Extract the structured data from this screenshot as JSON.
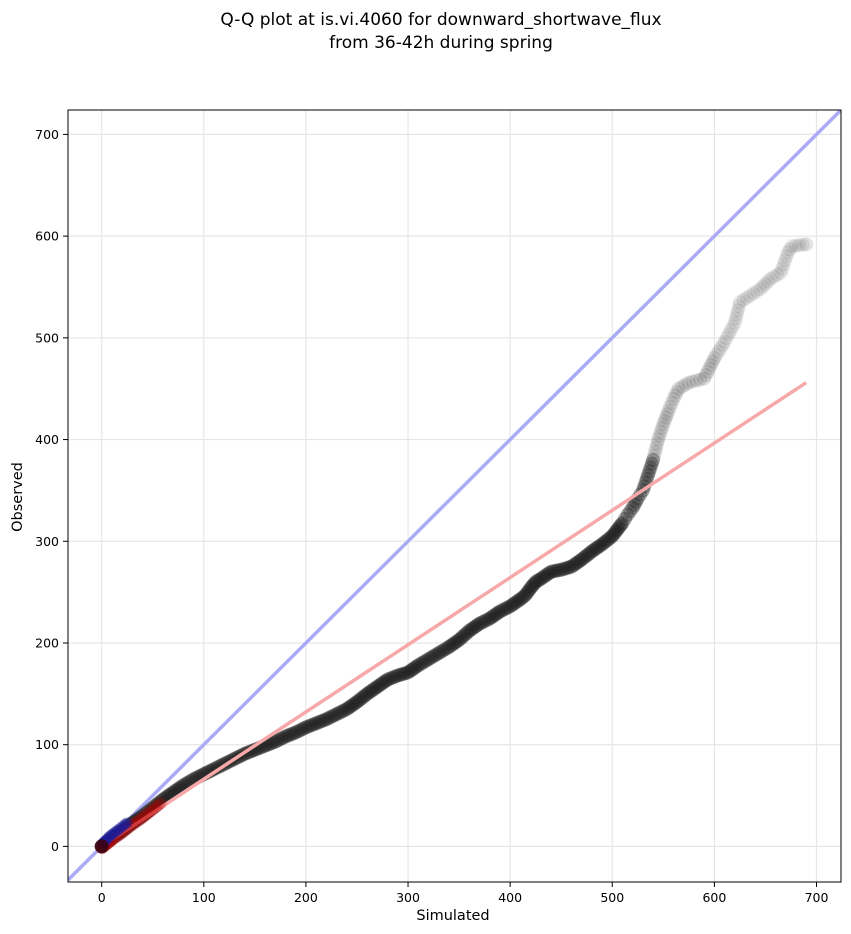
{
  "chart_data": {
    "type": "scatter",
    "title_lines": [
      "Q-Q plot at is.vi.4060 for downward_shortwave_flux",
      "from 36-42h during spring"
    ],
    "xlabel": "Simulated",
    "ylabel": "Observed",
    "xlim": [
      -33,
      724
    ],
    "ylim": [
      -35,
      724
    ],
    "xticks": [
      0,
      100,
      200,
      300,
      400,
      500,
      600,
      700
    ],
    "yticks": [
      0,
      100,
      200,
      300,
      400,
      500,
      600,
      700
    ],
    "grid": true,
    "colors": {
      "points": "#1a1a1a",
      "identity_line": "#aaaaf6",
      "fit_line": "#f7a9a9",
      "low_points_red": "#c00000",
      "low_points_blue": "#1b1b9a"
    },
    "reference_lines": [
      {
        "kind": "identity",
        "x": [
          -33,
          724
        ],
        "y": [
          -33,
          724
        ]
      },
      {
        "kind": "fit",
        "x": [
          0,
          690
        ],
        "y": [
          0,
          456
        ]
      }
    ],
    "quantile_curve": [
      [
        0,
        0
      ],
      [
        5,
        4
      ],
      [
        10,
        8
      ],
      [
        20,
        15
      ],
      [
        30,
        23
      ],
      [
        40,
        30
      ],
      [
        50,
        38
      ],
      [
        60,
        46
      ],
      [
        70,
        53
      ],
      [
        80,
        60
      ],
      [
        90,
        66
      ],
      [
        100,
        71
      ],
      [
        110,
        76
      ],
      [
        120,
        81
      ],
      [
        130,
        86
      ],
      [
        140,
        91
      ],
      [
        150,
        95
      ],
      [
        160,
        99
      ],
      [
        170,
        103
      ],
      [
        180,
        108
      ],
      [
        190,
        112
      ],
      [
        200,
        117
      ],
      [
        210,
        121
      ],
      [
        220,
        125
      ],
      [
        230,
        130
      ],
      [
        240,
        135
      ],
      [
        250,
        142
      ],
      [
        260,
        150
      ],
      [
        270,
        157
      ],
      [
        280,
        164
      ],
      [
        290,
        168
      ],
      [
        300,
        171
      ],
      [
        310,
        178
      ],
      [
        320,
        184
      ],
      [
        330,
        190
      ],
      [
        340,
        196
      ],
      [
        350,
        203
      ],
      [
        360,
        212
      ],
      [
        370,
        219
      ],
      [
        380,
        224
      ],
      [
        390,
        231
      ],
      [
        400,
        236
      ],
      [
        410,
        243
      ],
      [
        415,
        247
      ],
      [
        420,
        254
      ],
      [
        425,
        260
      ],
      [
        430,
        263
      ],
      [
        440,
        270
      ],
      [
        450,
        272
      ],
      [
        460,
        275
      ],
      [
        470,
        282
      ],
      [
        480,
        290
      ],
      [
        490,
        297
      ],
      [
        500,
        305
      ],
      [
        510,
        318
      ],
      [
        515,
        326
      ],
      [
        520,
        333
      ],
      [
        525,
        342
      ],
      [
        530,
        350
      ],
      [
        535,
        365
      ],
      [
        540,
        380
      ],
      [
        545,
        400
      ],
      [
        550,
        415
      ],
      [
        555,
        428
      ],
      [
        560,
        440
      ],
      [
        565,
        450
      ],
      [
        575,
        456
      ],
      [
        590,
        460
      ],
      [
        600,
        480
      ],
      [
        610,
        496
      ],
      [
        620,
        515
      ],
      [
        625,
        535
      ],
      [
        645,
        548
      ],
      [
        655,
        558
      ],
      [
        665,
        564
      ],
      [
        672,
        584
      ],
      [
        676,
        590
      ],
      [
        690,
        592
      ]
    ],
    "series": [
      {
        "values": [
          [
            0,
            0
          ],
          [
            5,
            4
          ],
          [
            10,
            8
          ],
          [
            20,
            15
          ],
          [
            30,
            23
          ],
          [
            40,
            30
          ],
          [
            50,
            38
          ],
          [
            60,
            46
          ]
        ]
      },
      {
        "values": [
          [
            1,
            2
          ],
          [
            3,
            4
          ],
          [
            6,
            7
          ],
          [
            9,
            10
          ],
          [
            13,
            13
          ],
          [
            17,
            16
          ],
          [
            22,
            20
          ],
          [
            26,
            23
          ]
        ]
      }
    ]
  }
}
